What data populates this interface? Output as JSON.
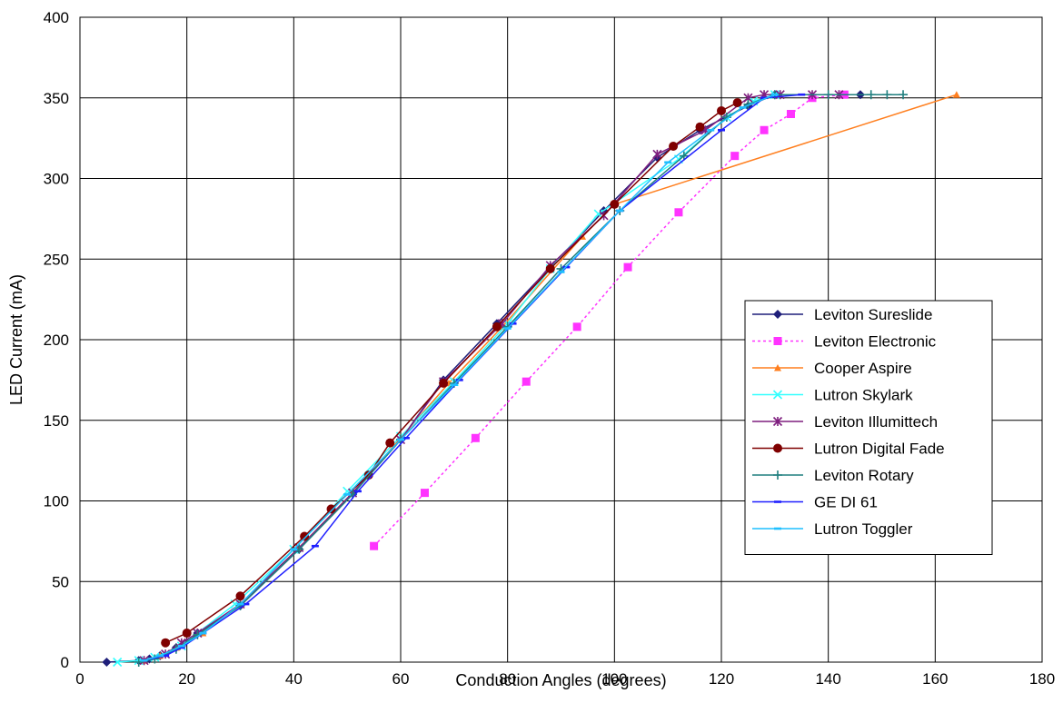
{
  "chart_data": {
    "type": "line",
    "title": "",
    "xlabel": "Conduction Angles (degrees)",
    "ylabel": "LED Current (mA)",
    "xlim": [
      0,
      180
    ],
    "ylim": [
      0,
      400
    ],
    "xticks": [
      "0",
      "20",
      "40",
      "60",
      "80",
      "100",
      "120",
      "140",
      "160",
      "180"
    ],
    "yticks": [
      "0",
      "50",
      "100",
      "150",
      "200",
      "250",
      "300",
      "350",
      "400"
    ],
    "grid": true,
    "legend_position": "right",
    "series": [
      {
        "name": "Leviton Sureslide",
        "color": "#1f1f7a",
        "marker": "diamond",
        "dash": false,
        "x": [
          5,
          11,
          13,
          15,
          18,
          22,
          30,
          41,
          51,
          60,
          68,
          78,
          88,
          98,
          108,
          116,
          125,
          130,
          146
        ],
        "y": [
          0,
          1,
          2,
          4,
          9,
          18,
          35,
          70,
          105,
          138,
          175,
          210,
          245,
          280,
          313,
          330,
          345,
          352,
          352
        ]
      },
      {
        "name": "Leviton Electronic",
        "color": "#ff33ff",
        "marker": "square",
        "dash": true,
        "x": [
          55,
          64.5,
          74,
          83.5,
          93,
          102.5,
          112,
          122.5,
          128,
          133,
          137,
          143
        ],
        "y": [
          72,
          105,
          139,
          174,
          208,
          245,
          279,
          314,
          330,
          340,
          350,
          352
        ]
      },
      {
        "name": "Cooper Aspire",
        "color": "#ff7f1f",
        "marker": "triangle",
        "dash": false,
        "x": [
          12,
          15,
          18,
          23,
          30,
          41,
          51,
          60,
          69,
          79,
          94,
          100,
          164
        ],
        "y": [
          1,
          4,
          9,
          18,
          36,
          71,
          105,
          139,
          173,
          208,
          264,
          284,
          352
        ]
      },
      {
        "name": "Lutron Skylark",
        "color": "#33ffff",
        "marker": "x",
        "dash": false,
        "x": [
          7,
          11,
          14,
          19,
          22,
          29,
          40,
          50,
          60,
          70,
          80,
          88,
          97,
          112,
          121,
          126,
          130
        ],
        "y": [
          0,
          1,
          3,
          10,
          18,
          36,
          70,
          106,
          140,
          174,
          210,
          244,
          278,
          312,
          338,
          348,
          352
        ]
      },
      {
        "name": "Leviton Illumittech",
        "color": "#7f1f7f",
        "marker": "star",
        "dash": false,
        "x": [
          12,
          16,
          19,
          22,
          30,
          41,
          51,
          60,
          68,
          79,
          88,
          98,
          108,
          117,
          125,
          128,
          131,
          137,
          142
        ],
        "y": [
          1,
          5,
          12,
          18,
          36,
          71,
          105,
          138,
          174,
          210,
          246,
          277,
          315,
          330,
          350,
          352,
          352,
          352,
          352
        ]
      },
      {
        "name": "Lutron Digital Fade",
        "color": "#7f0000",
        "marker": "circle",
        "dash": false,
        "x": [
          16,
          20,
          30,
          42,
          47,
          54,
          58,
          68,
          78,
          88,
          100,
          111,
          116,
          120,
          123
        ],
        "y": [
          12,
          18,
          41,
          78,
          95,
          116,
          136,
          173,
          208,
          244,
          284,
          320,
          332,
          342,
          347
        ]
      },
      {
        "name": "Leviton Rotary",
        "color": "#1f7f7f",
        "marker": "plus",
        "dash": false,
        "x": [
          11,
          14,
          18,
          22,
          30,
          41,
          51,
          60,
          70,
          80,
          90,
          101,
          113,
          121,
          125,
          130,
          140,
          148,
          151,
          154
        ],
        "y": [
          0,
          2,
          8,
          17,
          35,
          70,
          104,
          138,
          173,
          208,
          244,
          280,
          314,
          338,
          346,
          352,
          352,
          352,
          352,
          352
        ]
      },
      {
        "name": "GE DI 61",
        "color": "#1f1fff",
        "marker": "dash",
        "dash": false,
        "x": [
          12,
          16,
          19,
          23,
          31,
          44,
          52,
          61,
          71,
          81,
          91,
          101,
          120,
          128,
          135
        ],
        "y": [
          1,
          4,
          9,
          18,
          36,
          72,
          106,
          139,
          175,
          210,
          245,
          280,
          330,
          350,
          352
        ]
      },
      {
        "name": "Lutron Toggler",
        "color": "#1fbfff",
        "marker": "dash",
        "dash": false,
        "x": [
          12,
          15,
          19,
          23,
          30,
          40,
          50,
          60,
          70,
          80,
          90,
          101,
          110,
          118,
          124,
          130
        ],
        "y": [
          1,
          4,
          10,
          18,
          36,
          70,
          104,
          138,
          172,
          207,
          242,
          280,
          310,
          330,
          344,
          352
        ]
      }
    ]
  }
}
